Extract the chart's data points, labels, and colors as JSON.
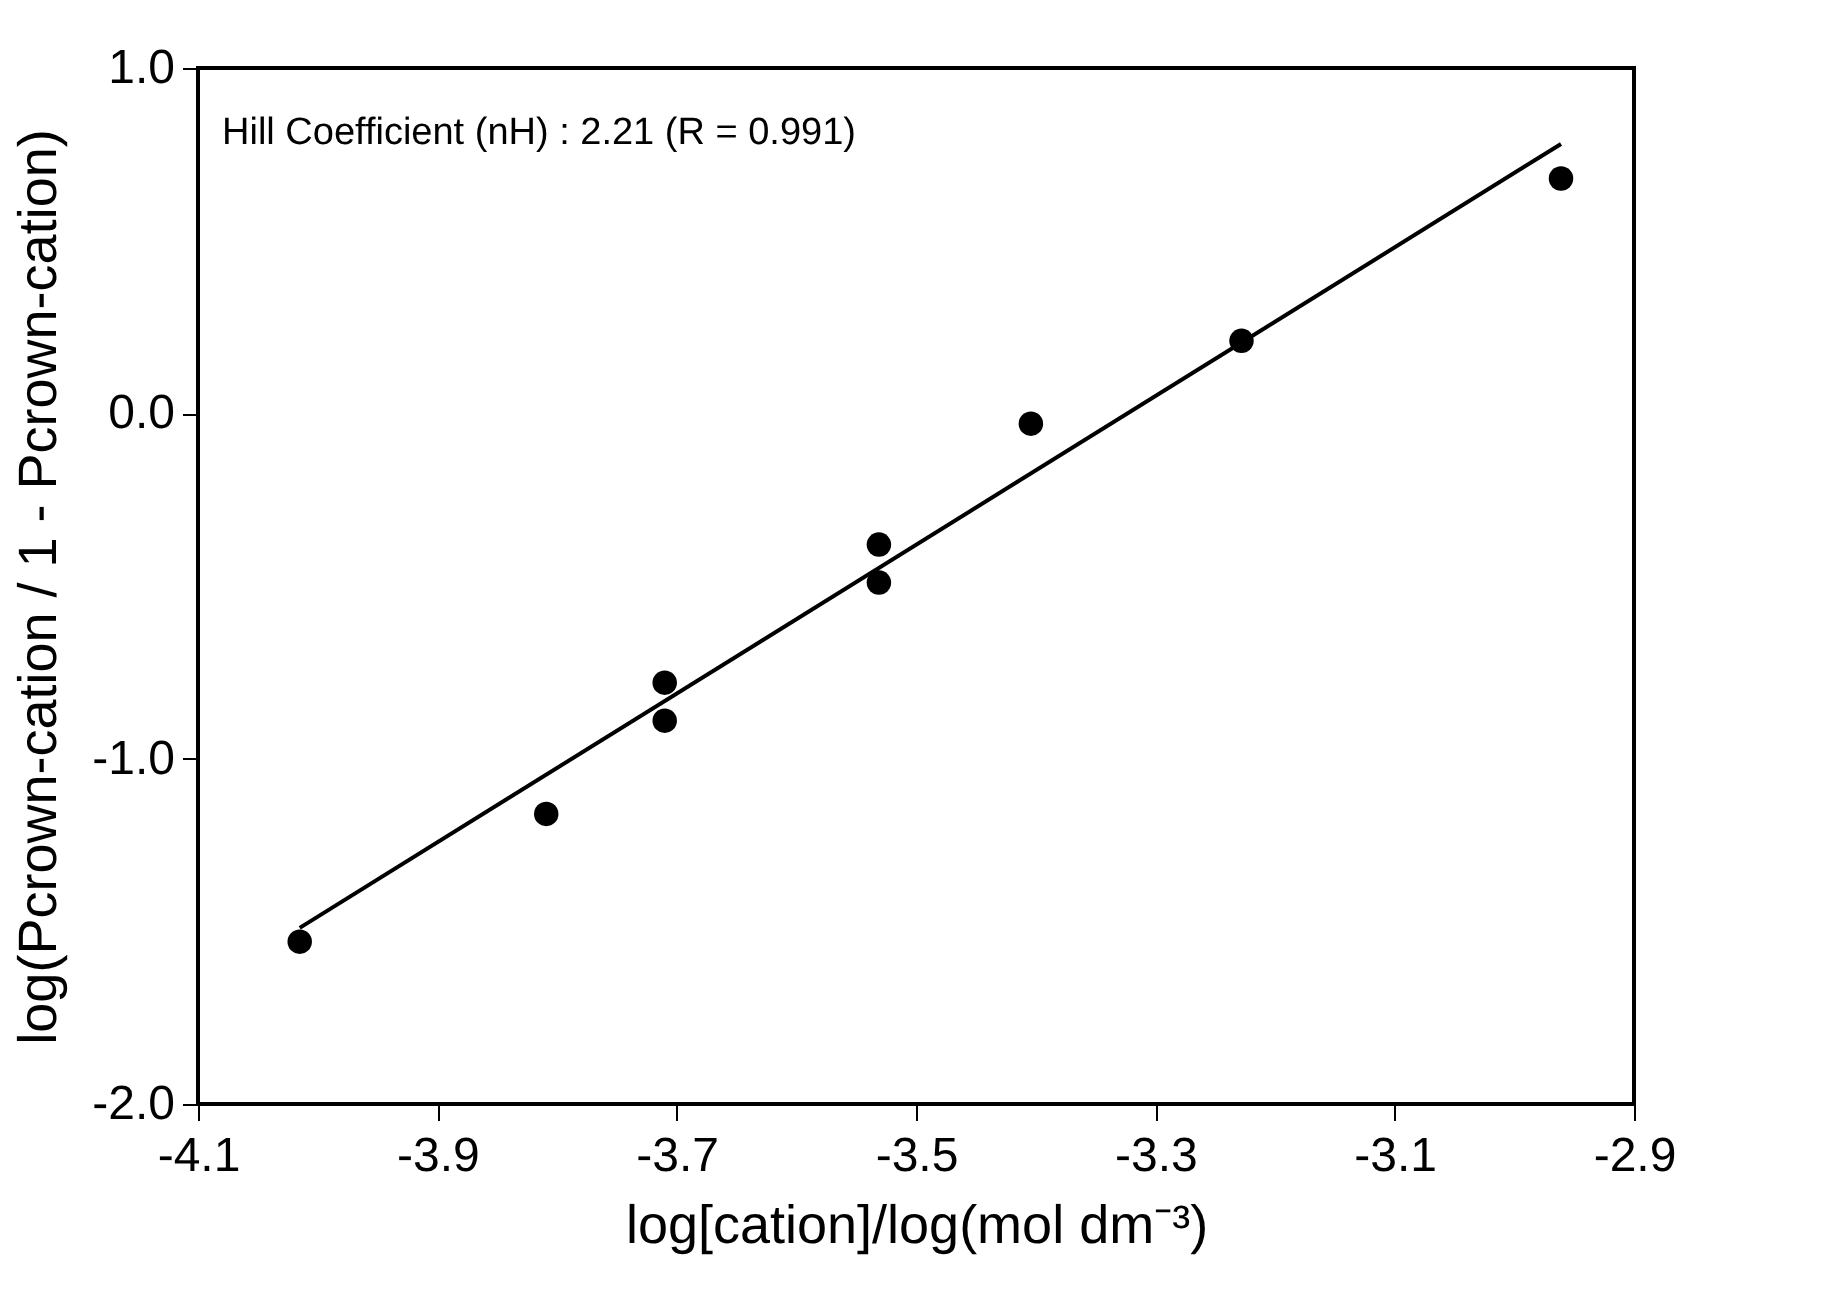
{
  "chart_data": {
    "type": "scatter",
    "xlabel": "log[cation]/log(mol  dm⁻³)",
    "ylabel": "log(Pcrown-cation / 1 - Pcrown-cation)",
    "annotations": [
      "Hill Coefficient  (nH) : 2.21 (R = 0.991)"
    ],
    "series": [
      {
        "color": "#000000",
        "marker": "circle",
        "x": [
          -4.015,
          -3.809,
          -3.71,
          -3.71,
          -3.531,
          -3.531,
          -3.404,
          -3.228,
          -2.961
        ],
        "values": [
          -1.53,
          -1.16,
          -0.78,
          -0.89,
          -0.38,
          -0.49,
          -0.03,
          0.21,
          0.68
        ]
      },
      {
        "type": "line",
        "color": "#000000",
        "line_style": "solid",
        "x": [
          -4.015,
          -2.961
        ],
        "values": [
          -1.49,
          0.78
        ]
      }
    ],
    "xlim": [
      -4.1,
      -2.9
    ],
    "xticks": [
      -4.1,
      -3.9,
      -3.7,
      -3.5,
      -3.3,
      -3.1,
      -2.9
    ],
    "ylim": [
      -2.0,
      1.0
    ],
    "yticks": [
      {
        "value": -2.0,
        "label": "-2.0"
      },
      {
        "value": -1.0,
        "label": "-1.0"
      },
      {
        "value": 0.0,
        "label": "0.0"
      },
      {
        "value": 1.0,
        "label": "1.0"
      }
    ],
    "grid": false
  }
}
